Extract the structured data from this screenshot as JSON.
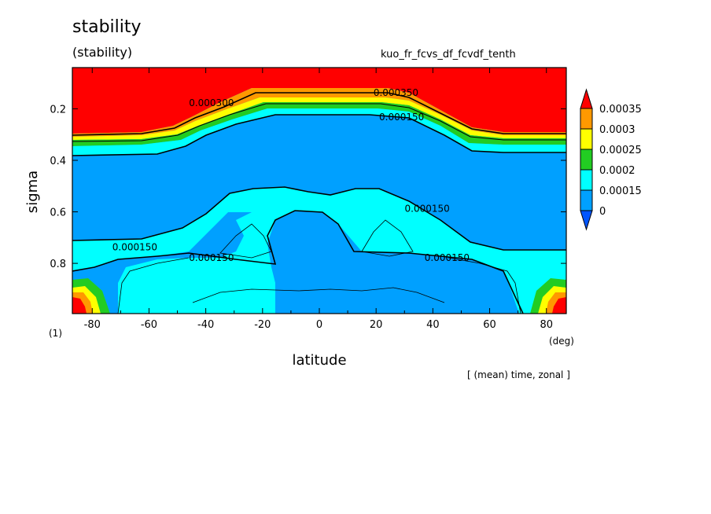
{
  "header": {
    "title": "stability",
    "subtitle": "(stability)",
    "run_name": "kuo_fr_fcvs_df_fcvdf_tenth",
    "note": "[ (mean) time, zonal ]"
  },
  "chart_data": {
    "type": "heatmap",
    "title": "stability",
    "subtitle": "(stability)",
    "xlabel": "latitude",
    "ylabel": "sigma",
    "x_unit": "(deg)",
    "y_unit": "(1)",
    "xlim": [
      -87,
      87
    ],
    "ylim": [
      0.995,
      0.04
    ],
    "x_ticks": [
      -80,
      -60,
      -40,
      -20,
      0,
      20,
      40,
      60,
      80
    ],
    "x_tick_labels": [
      "-80",
      "-60",
      "-40",
      "-20",
      "0",
      "20",
      "40",
      "60",
      "80"
    ],
    "y_ticks": [
      0.2,
      0.4,
      0.6,
      0.8
    ],
    "y_tick_labels": [
      "0.2",
      "0.4",
      "0.6",
      "0.8"
    ],
    "colorbar": {
      "levels": [
        "0.00035",
        "0.0003",
        "0.00025",
        "0.0002",
        "0.00015",
        "0"
      ],
      "colors": [
        "#ff0000",
        "#ff9900",
        "#ffff00",
        "#22cc22",
        "#00ffff",
        "#00a0ff",
        "#0055ff"
      ]
    },
    "contour_labels": [
      {
        "text": "0.000300",
        "lat": -38,
        "sigma": 0.19
      },
      {
        "text": "0.000350",
        "lat": 27,
        "sigma": 0.15
      },
      {
        "text": "0.000150",
        "lat": 29,
        "sigma": 0.245
      },
      {
        "text": "0.000150",
        "lat": 38,
        "sigma": 0.6
      },
      {
        "text": "0.000150",
        "lat": -65,
        "sigma": 0.75
      },
      {
        "text": "0.000150",
        "lat": -38,
        "sigma": 0.79
      },
      {
        "text": "0.000150",
        "lat": 45,
        "sigma": 0.79
      }
    ],
    "regions": [
      {
        "level": "> 0.00035",
        "description": "upper layer sigma < ~0.2 at all latitudes; near-surface poleward of 80"
      },
      {
        "level": "0.00015 - 0.0002",
        "description": "mid-troposphere band sigma 0.5-0.75 and polar lower levels"
      },
      {
        "level": "0 - 0.00015",
        "description": "bulk of troposphere"
      }
    ]
  }
}
